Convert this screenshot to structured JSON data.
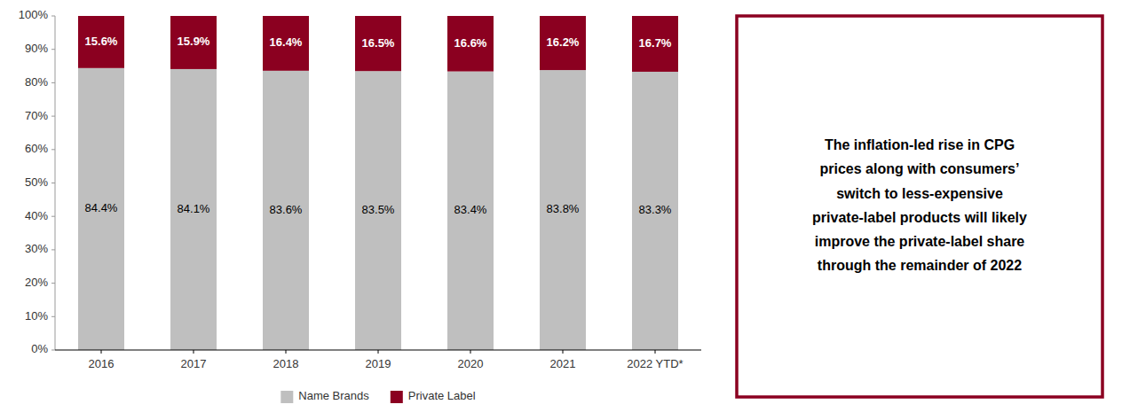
{
  "chart_data": {
    "type": "bar",
    "stacked": true,
    "data_labels": true,
    "grid": false,
    "legend": "bottom",
    "categories": [
      "2016",
      "2017",
      "2018",
      "2019",
      "2020",
      "2021",
      "2022 YTD*"
    ],
    "series": [
      {
        "name": "Name Brands",
        "color": "#BFBFBF",
        "values": [
          84.4,
          84.1,
          83.6,
          83.5,
          83.4,
          83.8,
          83.3
        ],
        "value_labels": [
          "84.4%",
          "84.1%",
          "83.6%",
          "83.5%",
          "83.4%",
          "83.8%",
          "83.3%"
        ]
      },
      {
        "name": "Private Label",
        "color": "#8B0020",
        "values": [
          15.6,
          15.9,
          16.4,
          16.5,
          16.6,
          16.2,
          16.7
        ],
        "value_labels": [
          "15.6%",
          "15.9%",
          "16.4%",
          "16.5%",
          "16.6%",
          "16.2%",
          "16.7%"
        ]
      }
    ],
    "ylim": [
      0,
      100
    ],
    "yticks": [
      {
        "value": 0,
        "label": "0%"
      },
      {
        "value": 10,
        "label": "10%"
      },
      {
        "value": 20,
        "label": "20%"
      },
      {
        "value": 30,
        "label": "30%"
      },
      {
        "value": 40,
        "label": "40%"
      },
      {
        "value": 50,
        "label": "50%"
      },
      {
        "value": 60,
        "label": "60%"
      },
      {
        "value": 70,
        "label": "70%"
      },
      {
        "value": 80,
        "label": "80%"
      },
      {
        "value": 90,
        "label": "90%"
      },
      {
        "value": 100,
        "label": "100%"
      }
    ],
    "annotation": "The inflation-led rise in CPG\nprices along with consumers’\nswitch to less-expensive\nprivate-label products will likely\nimprove the private-label share\nthrough the remainder of 2022"
  }
}
